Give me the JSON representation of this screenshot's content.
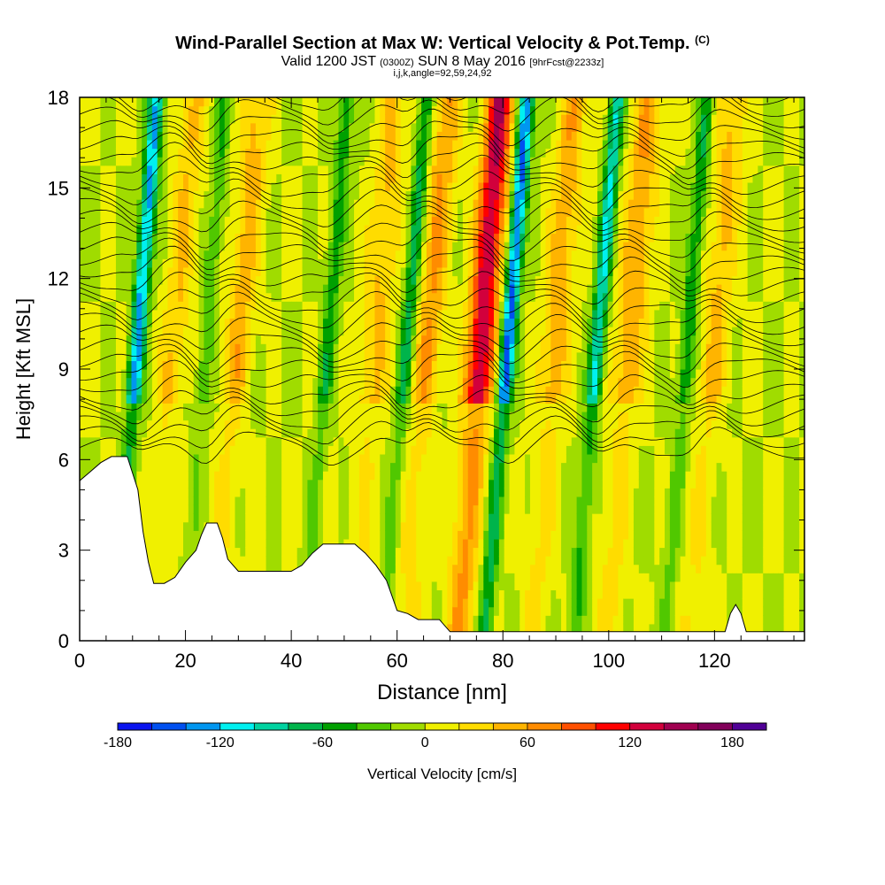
{
  "chart_data": {
    "type": "heatmap",
    "title": "Wind-Parallel Section at Max W: Vertical Velocity & Pot.Temp.",
    "title_mark": "(C)",
    "subtitle": "Valid 1200 JST",
    "subtitle_utc": "(0300Z)",
    "subtitle_date": "SUN 8 May 2016",
    "subtitle_fcst": "[9hrFcst@2233z]",
    "subtitle2": "i,j,k,angle=92,59,24,92",
    "xlabel": "Distance [nm]",
    "ylabel": "Height [Kft MSL]",
    "xlim": [
      0,
      137
    ],
    "ylim": [
      0,
      18
    ],
    "x_ticks": [
      0,
      20,
      40,
      60,
      80,
      100,
      120
    ],
    "x_tick_labels": [
      "0",
      "20",
      "40",
      "60",
      "80",
      "100",
      "120"
    ],
    "y_ticks": [
      0,
      3,
      6,
      9,
      12,
      15,
      18
    ],
    "y_tick_labels": [
      "0",
      "3",
      "6",
      "9",
      "12",
      "15",
      "18"
    ],
    "colorbar": {
      "label": "Vertical Velocity [cm/s]",
      "min": -180,
      "max": 200,
      "step": 20,
      "tick_values": [
        -180,
        -120,
        -60,
        0,
        60,
        120,
        180
      ],
      "tick_labels": [
        "-180",
        "-120",
        "-60",
        "0",
        "60",
        "120",
        "180"
      ],
      "colors": [
        "#0a14f0",
        "#0050f0",
        "#0096f0",
        "#00f0f0",
        "#00d2a0",
        "#00b44b",
        "#00a000",
        "#50c800",
        "#a0dc00",
        "#f0f000",
        "#ffdc00",
        "#ffb400",
        "#ff8c00",
        "#ff5000",
        "#ff0000",
        "#d2003c",
        "#a00050",
        "#82005a",
        "#500096"
      ]
    },
    "updraft_columns": [
      {
        "x": 18,
        "top_w": 40
      },
      {
        "x": 30,
        "top_w": 50
      },
      {
        "x": 56,
        "top_w": 45
      },
      {
        "x": 66,
        "top_w": 60
      },
      {
        "x": 76,
        "top_w": 140
      },
      {
        "x": 90,
        "top_w": 55
      },
      {
        "x": 104,
        "top_w": 60
      },
      {
        "x": 120,
        "top_w": 45
      }
    ],
    "downdraft_columns": [
      {
        "x": 11,
        "top_w": -130
      },
      {
        "x": 24,
        "top_w": -40
      },
      {
        "x": 47,
        "top_w": -55
      },
      {
        "x": 62,
        "top_w": -70
      },
      {
        "x": 81,
        "top_w": -150
      },
      {
        "x": 98,
        "top_w": -100
      },
      {
        "x": 115,
        "top_w": -60
      }
    ],
    "terrain": [
      [
        0,
        5.3
      ],
      [
        2,
        5.6
      ],
      [
        4,
        5.9
      ],
      [
        6,
        6.1
      ],
      [
        9,
        6.1
      ],
      [
        11,
        5.0
      ],
      [
        12,
        3.6
      ],
      [
        13,
        2.6
      ],
      [
        14,
        1.9
      ],
      [
        16,
        1.9
      ],
      [
        18,
        2.1
      ],
      [
        20,
        2.6
      ],
      [
        22,
        3.0
      ],
      [
        23,
        3.5
      ],
      [
        24,
        3.9
      ],
      [
        26,
        3.9
      ],
      [
        27,
        3.4
      ],
      [
        28,
        2.7
      ],
      [
        30,
        2.3
      ],
      [
        36,
        2.3
      ],
      [
        40,
        2.3
      ],
      [
        42,
        2.5
      ],
      [
        44,
        2.9
      ],
      [
        46,
        3.2
      ],
      [
        52,
        3.2
      ],
      [
        54,
        2.9
      ],
      [
        56,
        2.5
      ],
      [
        58,
        2.0
      ],
      [
        59,
        1.5
      ],
      [
        60,
        1.0
      ],
      [
        62,
        0.9
      ],
      [
        64,
        0.7
      ],
      [
        68,
        0.7
      ],
      [
        70,
        0.3
      ],
      [
        122,
        0.3
      ],
      [
        123,
        0.9
      ],
      [
        124,
        1.2
      ],
      [
        125,
        0.9
      ],
      [
        126,
        0.3
      ],
      [
        137,
        0.3
      ]
    ],
    "theta_contours_shown": true
  }
}
